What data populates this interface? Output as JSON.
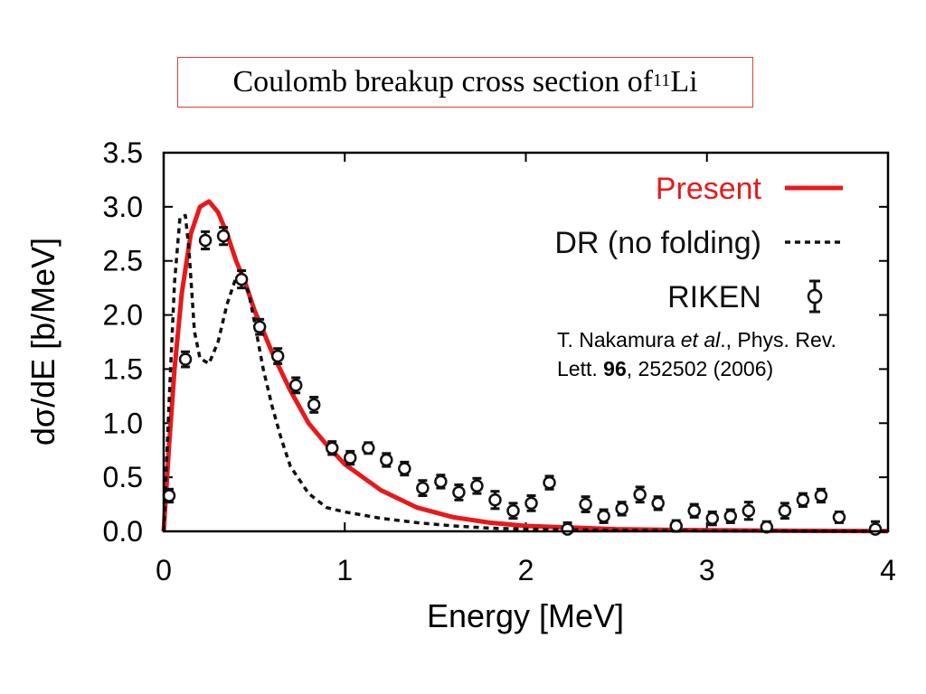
{
  "title": {
    "prefix": "Coulomb breakup cross section of ",
    "mass": "11",
    "element": "Li"
  },
  "citation": {
    "author": "T. Nakamura ",
    "etal": "et al",
    "journal": "., Phys. Rev. Lett. ",
    "volume": "96",
    "rest": ", 252502 (2006)"
  },
  "chart_data": {
    "type": "line",
    "xlabel": "Energy [MeV]",
    "ylabel": "dσ/dE [b/MeV]",
    "xlim": [
      0,
      4
    ],
    "ylim": [
      0,
      3.5
    ],
    "xticks": [
      "0",
      "1",
      "2",
      "3",
      "4"
    ],
    "yticks": [
      "0.0",
      "0.5",
      "1.0",
      "1.5",
      "2.0",
      "2.5",
      "3.0",
      "3.5"
    ],
    "legend_position": "top-right",
    "series": [
      {
        "name": "Present",
        "style": "solid",
        "color": "#e8191b",
        "x": [
          0,
          0.03,
          0.06,
          0.1,
          0.15,
          0.2,
          0.25,
          0.3,
          0.35,
          0.4,
          0.45,
          0.5,
          0.6,
          0.7,
          0.8,
          0.9,
          1.0,
          1.2,
          1.4,
          1.6,
          1.8,
          2.0,
          2.5,
          3.0,
          3.5,
          4.0
        ],
        "y": [
          0,
          0.8,
          1.5,
          2.2,
          2.75,
          3.0,
          3.05,
          2.95,
          2.75,
          2.5,
          2.3,
          2.05,
          1.65,
          1.3,
          1.0,
          0.8,
          0.62,
          0.38,
          0.22,
          0.13,
          0.08,
          0.05,
          0.02,
          0.01,
          0.005,
          0.002
        ]
      },
      {
        "name": "DR (no folding)",
        "style": "dashed",
        "color": "#111111",
        "x": [
          0,
          0.03,
          0.06,
          0.09,
          0.12,
          0.14,
          0.17,
          0.2,
          0.25,
          0.3,
          0.35,
          0.4,
          0.43,
          0.47,
          0.5,
          0.55,
          0.6,
          0.65,
          0.7,
          0.8,
          0.9,
          1.0,
          1.2,
          1.4,
          1.6,
          1.8,
          2.0,
          2.5,
          3.0,
          4.0
        ],
        "y": [
          0,
          1.2,
          2.3,
          2.9,
          2.92,
          2.6,
          1.85,
          1.6,
          1.55,
          1.75,
          2.1,
          2.35,
          2.38,
          2.2,
          1.95,
          1.5,
          1.15,
          0.85,
          0.6,
          0.35,
          0.22,
          0.18,
          0.12,
          0.08,
          0.05,
          0.03,
          0.02,
          0.01,
          0.005,
          0
        ]
      },
      {
        "name": "RIKEN",
        "style": "points",
        "color": "#111111",
        "x": [
          0.03,
          0.12,
          0.23,
          0.33,
          0.43,
          0.53,
          0.63,
          0.73,
          0.83,
          0.93,
          1.03,
          1.13,
          1.23,
          1.33,
          1.43,
          1.53,
          1.63,
          1.73,
          1.83,
          1.93,
          2.03,
          2.13,
          2.23,
          2.33,
          2.43,
          2.53,
          2.63,
          2.73,
          2.83,
          2.93,
          3.03,
          3.13,
          3.23,
          3.33,
          3.43,
          3.53,
          3.63,
          3.73,
          3.93
        ],
        "y": [
          0.33,
          1.59,
          2.69,
          2.73,
          2.33,
          1.89,
          1.62,
          1.35,
          1.17,
          0.77,
          0.68,
          0.77,
          0.66,
          0.58,
          0.4,
          0.46,
          0.36,
          0.42,
          0.29,
          0.19,
          0.26,
          0.45,
          0.02,
          0.25,
          0.14,
          0.21,
          0.34,
          0.26,
          0.05,
          0.19,
          0.12,
          0.14,
          0.19,
          0.04,
          0.19,
          0.29,
          0.33,
          0.13,
          0.02
        ],
        "err": [
          0.06,
          0.07,
          0.08,
          0.08,
          0.08,
          0.07,
          0.07,
          0.07,
          0.07,
          0.06,
          0.06,
          0.05,
          0.06,
          0.06,
          0.07,
          0.06,
          0.07,
          0.07,
          0.08,
          0.07,
          0.07,
          0.06,
          0.06,
          0.07,
          0.06,
          0.06,
          0.07,
          0.06,
          0.05,
          0.06,
          0.06,
          0.06,
          0.08,
          0.05,
          0.07,
          0.06,
          0.06,
          0.05,
          0.07
        ]
      }
    ]
  }
}
